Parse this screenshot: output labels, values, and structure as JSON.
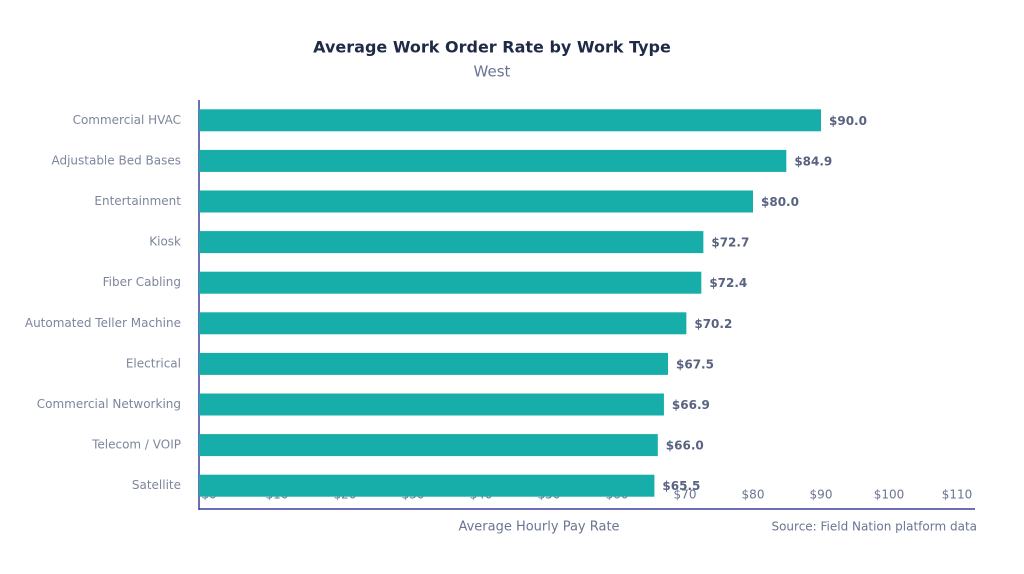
{
  "chart_data": {
    "type": "bar",
    "orientation": "horizontal",
    "title": "Average Work Order Rate by Work Type",
    "subtitle": "West",
    "x_label": "Average Hourly Pay Rate",
    "source": "Source: Field Nation platform data",
    "categories": [
      "Commercial HVAC",
      "Adjustable Bed Bases",
      "Entertainment",
      "Kiosk",
      "Fiber Cabling",
      "Automated Teller Machine",
      "Electrical",
      "Commercial Networking",
      "Telecom / VOIP",
      "Satellite"
    ],
    "values": [
      90.0,
      84.9,
      80.0,
      72.7,
      72.4,
      70.2,
      67.5,
      66.9,
      66.0,
      65.5
    ],
    "value_labels": [
      "$90.0",
      "$84.9",
      "$80.0",
      "$72.7",
      "$72.4",
      "$70.2",
      "$67.5",
      "$66.9",
      "$66.0",
      "$65.5"
    ],
    "color": "#17ada8",
    "xlim": [
      0,
      110
    ],
    "xticks": [
      {
        "value": 0,
        "label": "$0"
      },
      {
        "value": 10,
        "label": "$10"
      },
      {
        "value": 20,
        "label": "$20"
      },
      {
        "value": 30,
        "label": "$30"
      },
      {
        "value": 40,
        "label": "$40"
      },
      {
        "value": 50,
        "label": "$50"
      },
      {
        "value": 60,
        "label": "$60"
      },
      {
        "value": 70,
        "label": "$70"
      },
      {
        "value": 80,
        "label": "$80"
      },
      {
        "value": 90,
        "label": "$90"
      },
      {
        "value": 100,
        "label": "$100"
      },
      {
        "value": 110,
        "label": "$110"
      }
    ],
    "grid": false
  }
}
